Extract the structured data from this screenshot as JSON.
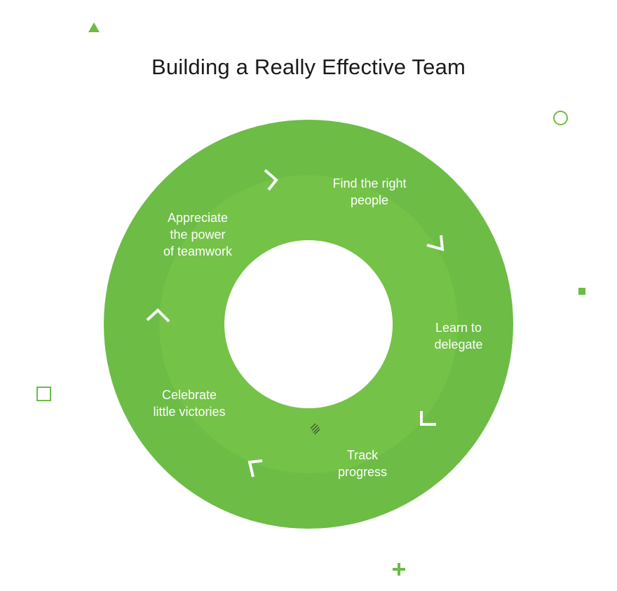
{
  "title": "Building a Really Effective Team",
  "colors": {
    "outer_ring": "#6cbc46",
    "inner_ring": "#74c247",
    "text": "#ffffff",
    "decor": "#6cbc46"
  },
  "steps": [
    {
      "label": "Find the right\npeople"
    },
    {
      "label": "Learn to\ndelegate"
    },
    {
      "label": "Track\nprogress"
    },
    {
      "label": "Celebrate\nlittle victories"
    },
    {
      "label": "Appreciate\nthe power\nof teamwork"
    }
  ]
}
